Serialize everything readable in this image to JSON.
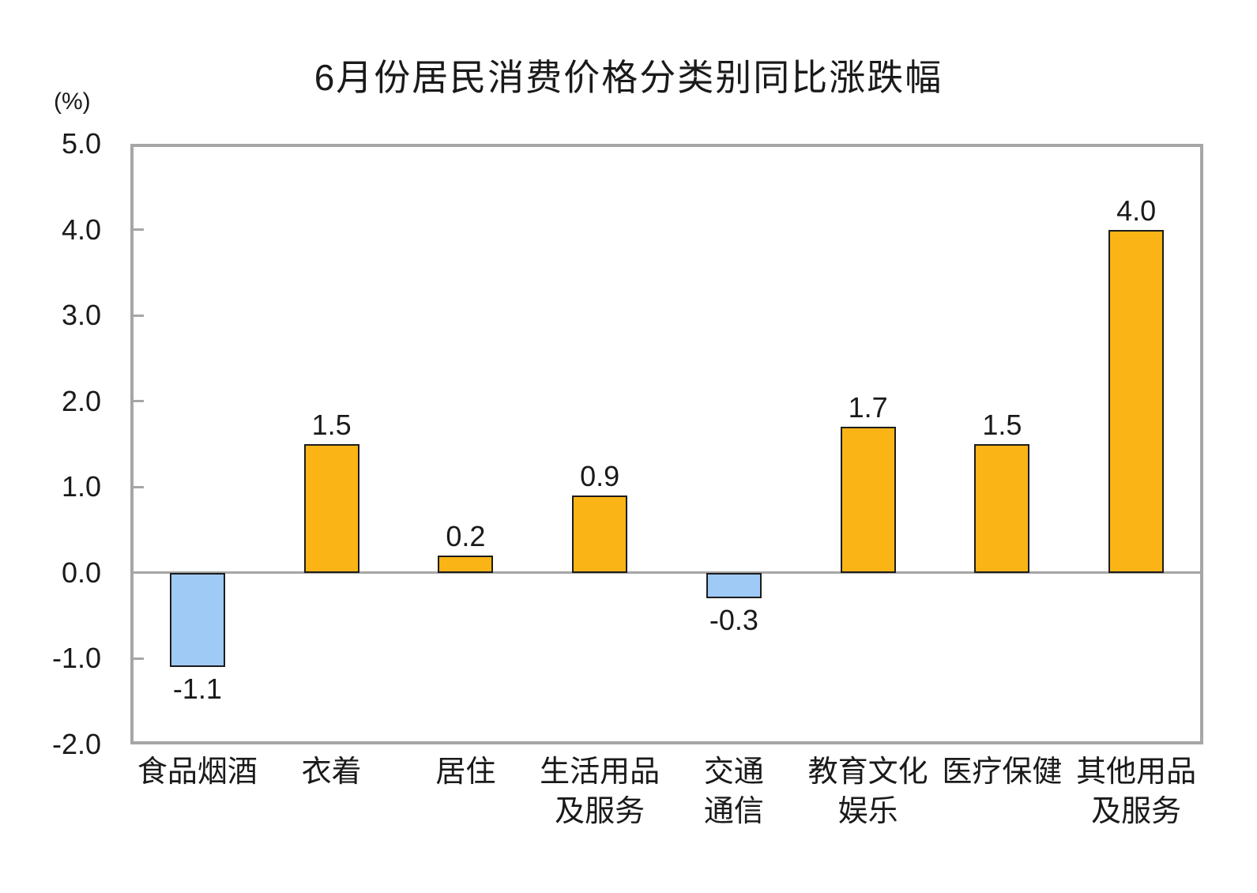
{
  "chart_data": {
    "type": "bar",
    "title": "6月份居民消费价格分类别同比涨跌幅",
    "unit_label": "(%)",
    "categories": [
      "食品烟酒",
      "衣着",
      "居住",
      "生活用品\n及服务",
      "交通\n通信",
      "教育文化\n娱乐",
      "医疗保健",
      "其他用品\n及服务"
    ],
    "values": [
      -1.1,
      1.5,
      0.2,
      0.9,
      -0.3,
      1.7,
      1.5,
      4.0
    ],
    "value_labels": [
      "-1.1",
      "1.5",
      "0.2",
      "0.9",
      "-0.3",
      "1.7",
      "1.5",
      "4.0"
    ],
    "xlabel": "",
    "ylabel": "(%)",
    "ylim": [
      -2.0,
      5.0
    ],
    "y_ticks": [
      "5.0",
      "4.0",
      "3.0",
      "2.0",
      "1.0",
      "0.0",
      "-1.0",
      "-2.0"
    ],
    "y_tick_values": [
      5,
      4,
      3,
      2,
      1,
      0,
      -1,
      -2
    ],
    "grid": false,
    "legend_position": "none",
    "colors": {
      "positive_fill": "#FBB415",
      "negative_fill": "#9ECAF5",
      "bar_border": "#1c1c1c",
      "axis_frame": "#A6A6A6",
      "text": "#1a1a1a"
    }
  }
}
